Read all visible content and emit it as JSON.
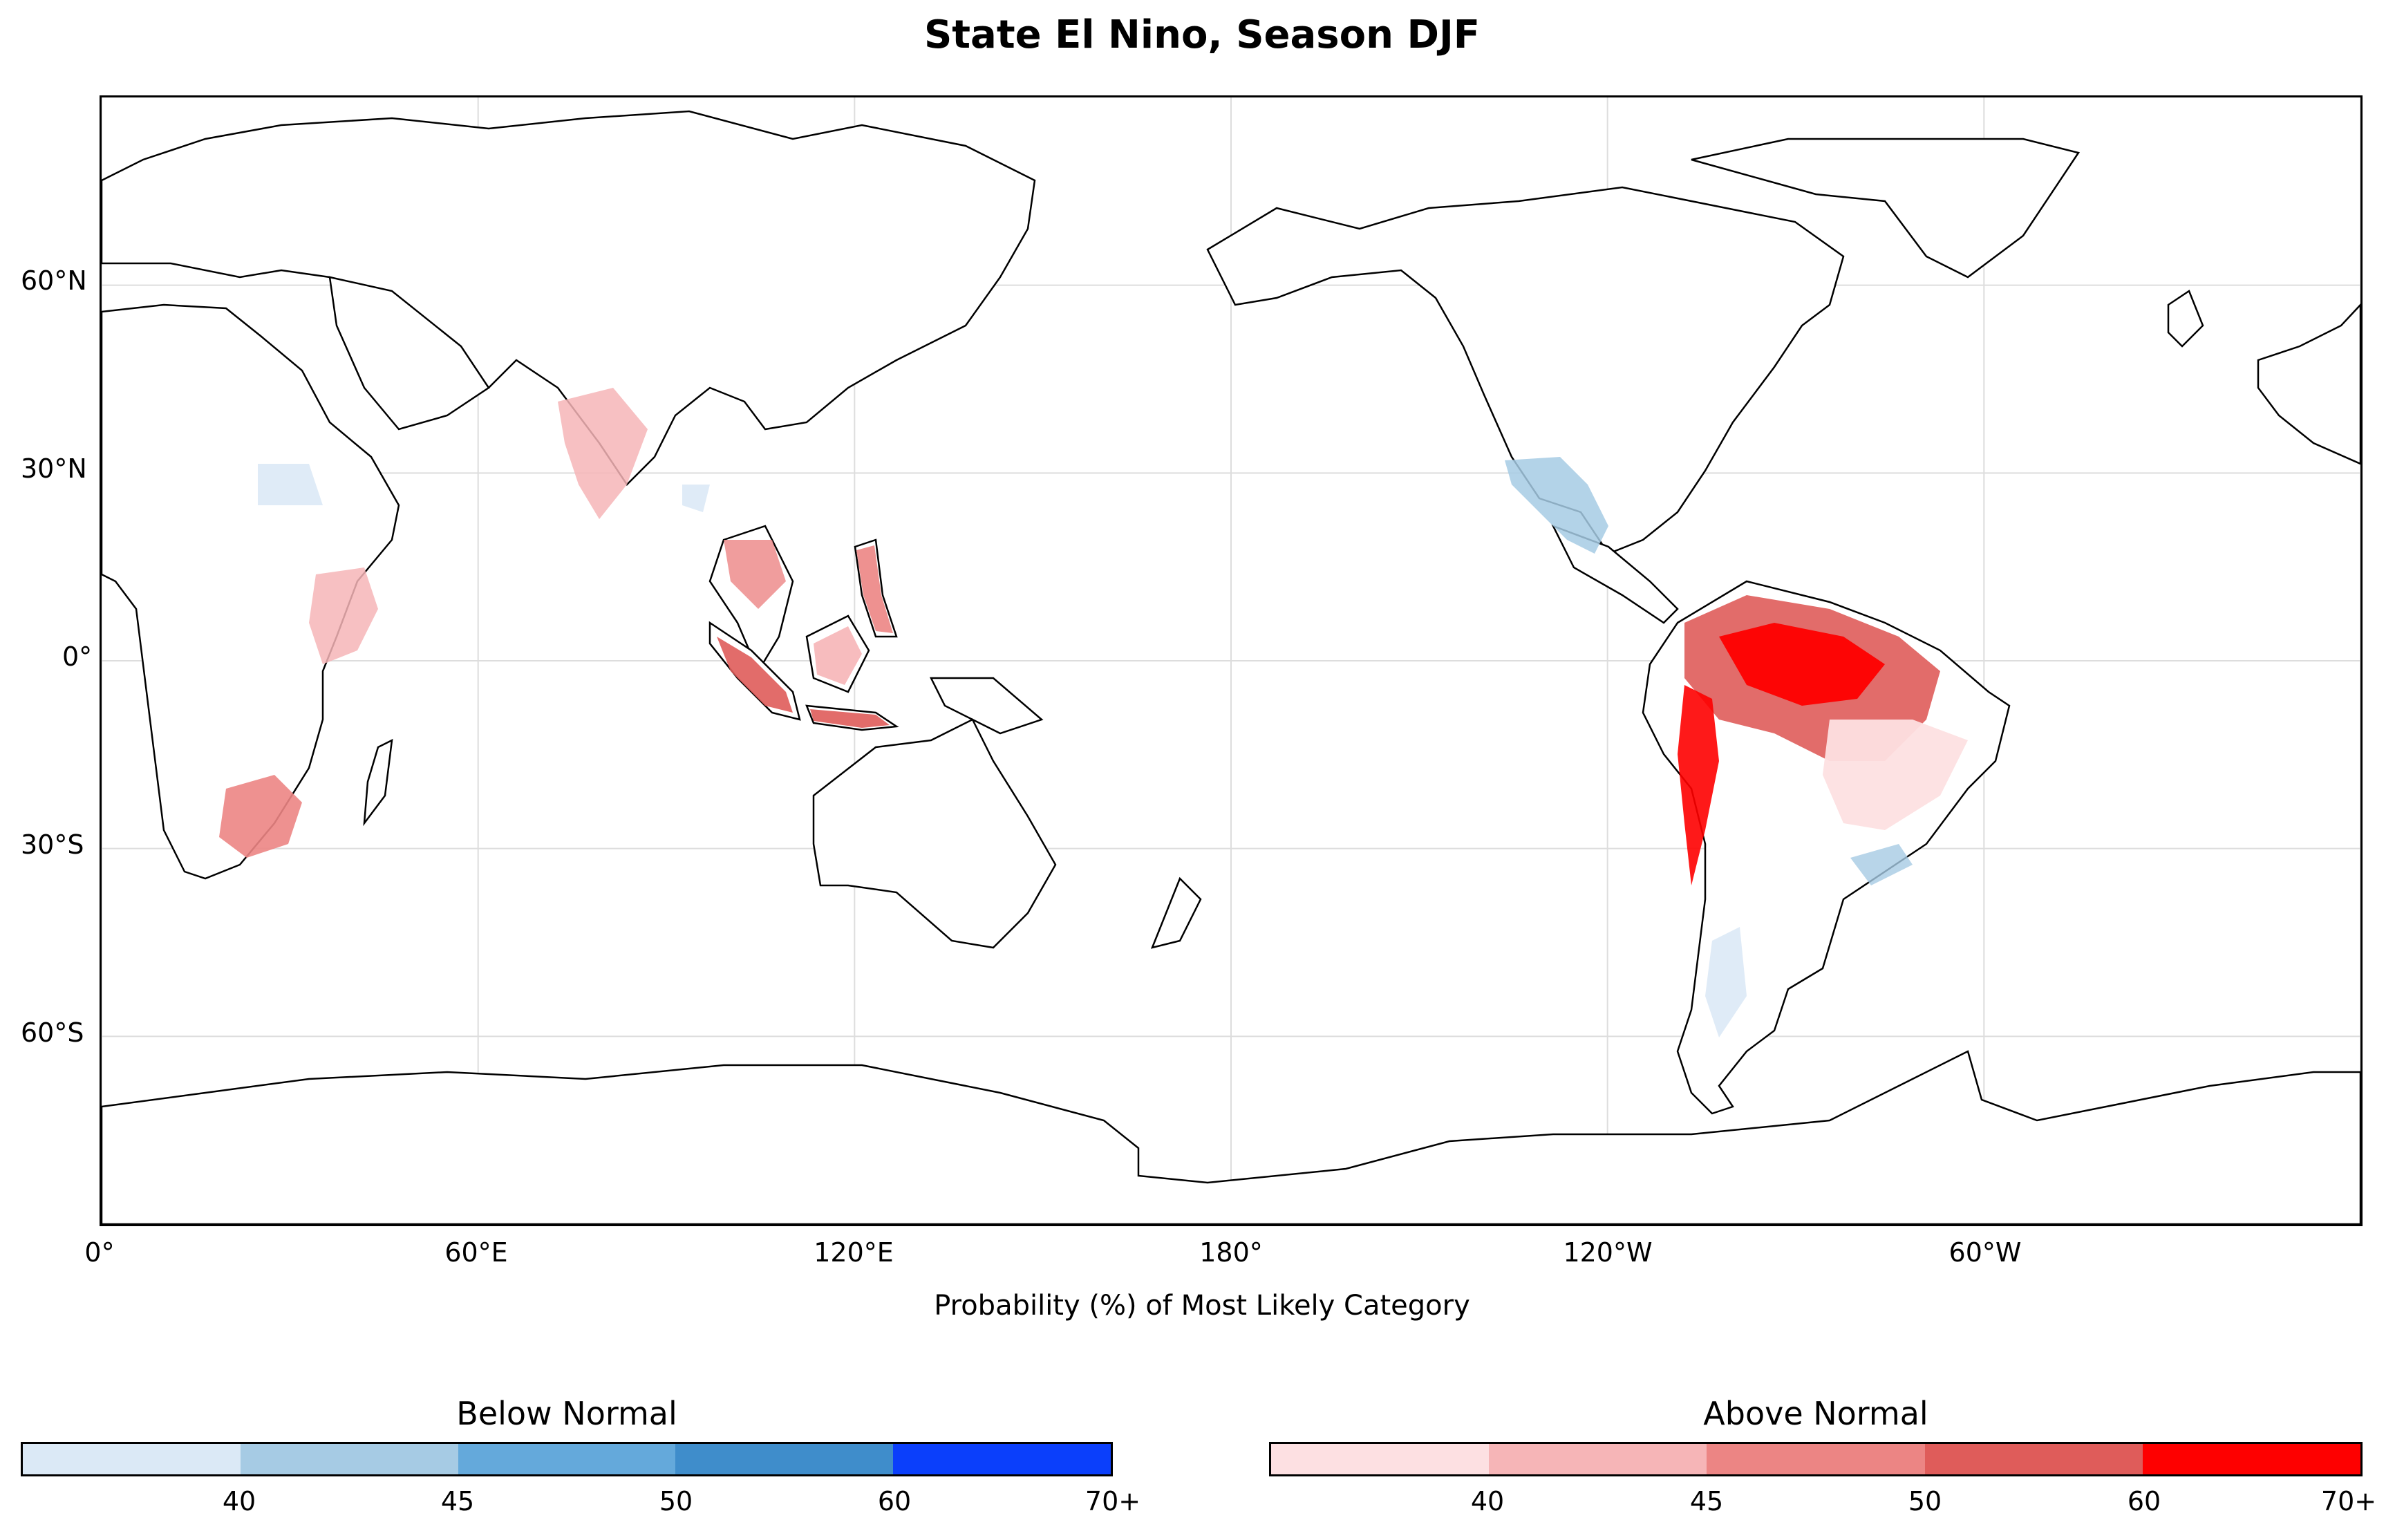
{
  "title": "State El Nino, Season DJF",
  "xlabel": "Probability (%) of Most Likely Category",
  "map": {
    "projection": "PlateCarree",
    "central_longitude": 180,
    "lat_labels": [
      "60°N",
      "30°N",
      "0°",
      "30°S",
      "60°S"
    ],
    "lon_labels": [
      "0°",
      "60°E",
      "120°E",
      "180°",
      "120°W",
      "60°W"
    ],
    "gridlines": true,
    "regions": [
      {
        "name": "Mexico",
        "category": "below"
      },
      {
        "name": "Southern Brazil / Uruguay",
        "category": "below"
      },
      {
        "name": "Egypt / Sinai",
        "category": "below"
      },
      {
        "name": "India",
        "category": "above"
      },
      {
        "name": "Southeast Asia",
        "category": "above"
      },
      {
        "name": "Indonesia / Philippines",
        "category": "above"
      },
      {
        "name": "East Africa",
        "category": "above"
      },
      {
        "name": "Southern Africa",
        "category": "above"
      },
      {
        "name": "Northern South America",
        "category": "above"
      },
      {
        "name": "Andes / Chile",
        "category": "above"
      }
    ]
  },
  "colorbars": [
    {
      "title": "Below Normal",
      "ticks": [
        "40",
        "45",
        "50",
        "60",
        "70+"
      ],
      "colors": [
        "#dbe9f6",
        "#a6cbe4",
        "#64a9db",
        "#3f8dcb",
        "#0b3ffb"
      ]
    },
    {
      "title": "Above Normal",
      "ticks": [
        "40",
        "45",
        "50",
        "60",
        "70+"
      ],
      "colors": [
        "#fde0e2",
        "#f6b5b7",
        "#ec8584",
        "#df5c5a",
        "#fe0000"
      ]
    }
  ]
}
